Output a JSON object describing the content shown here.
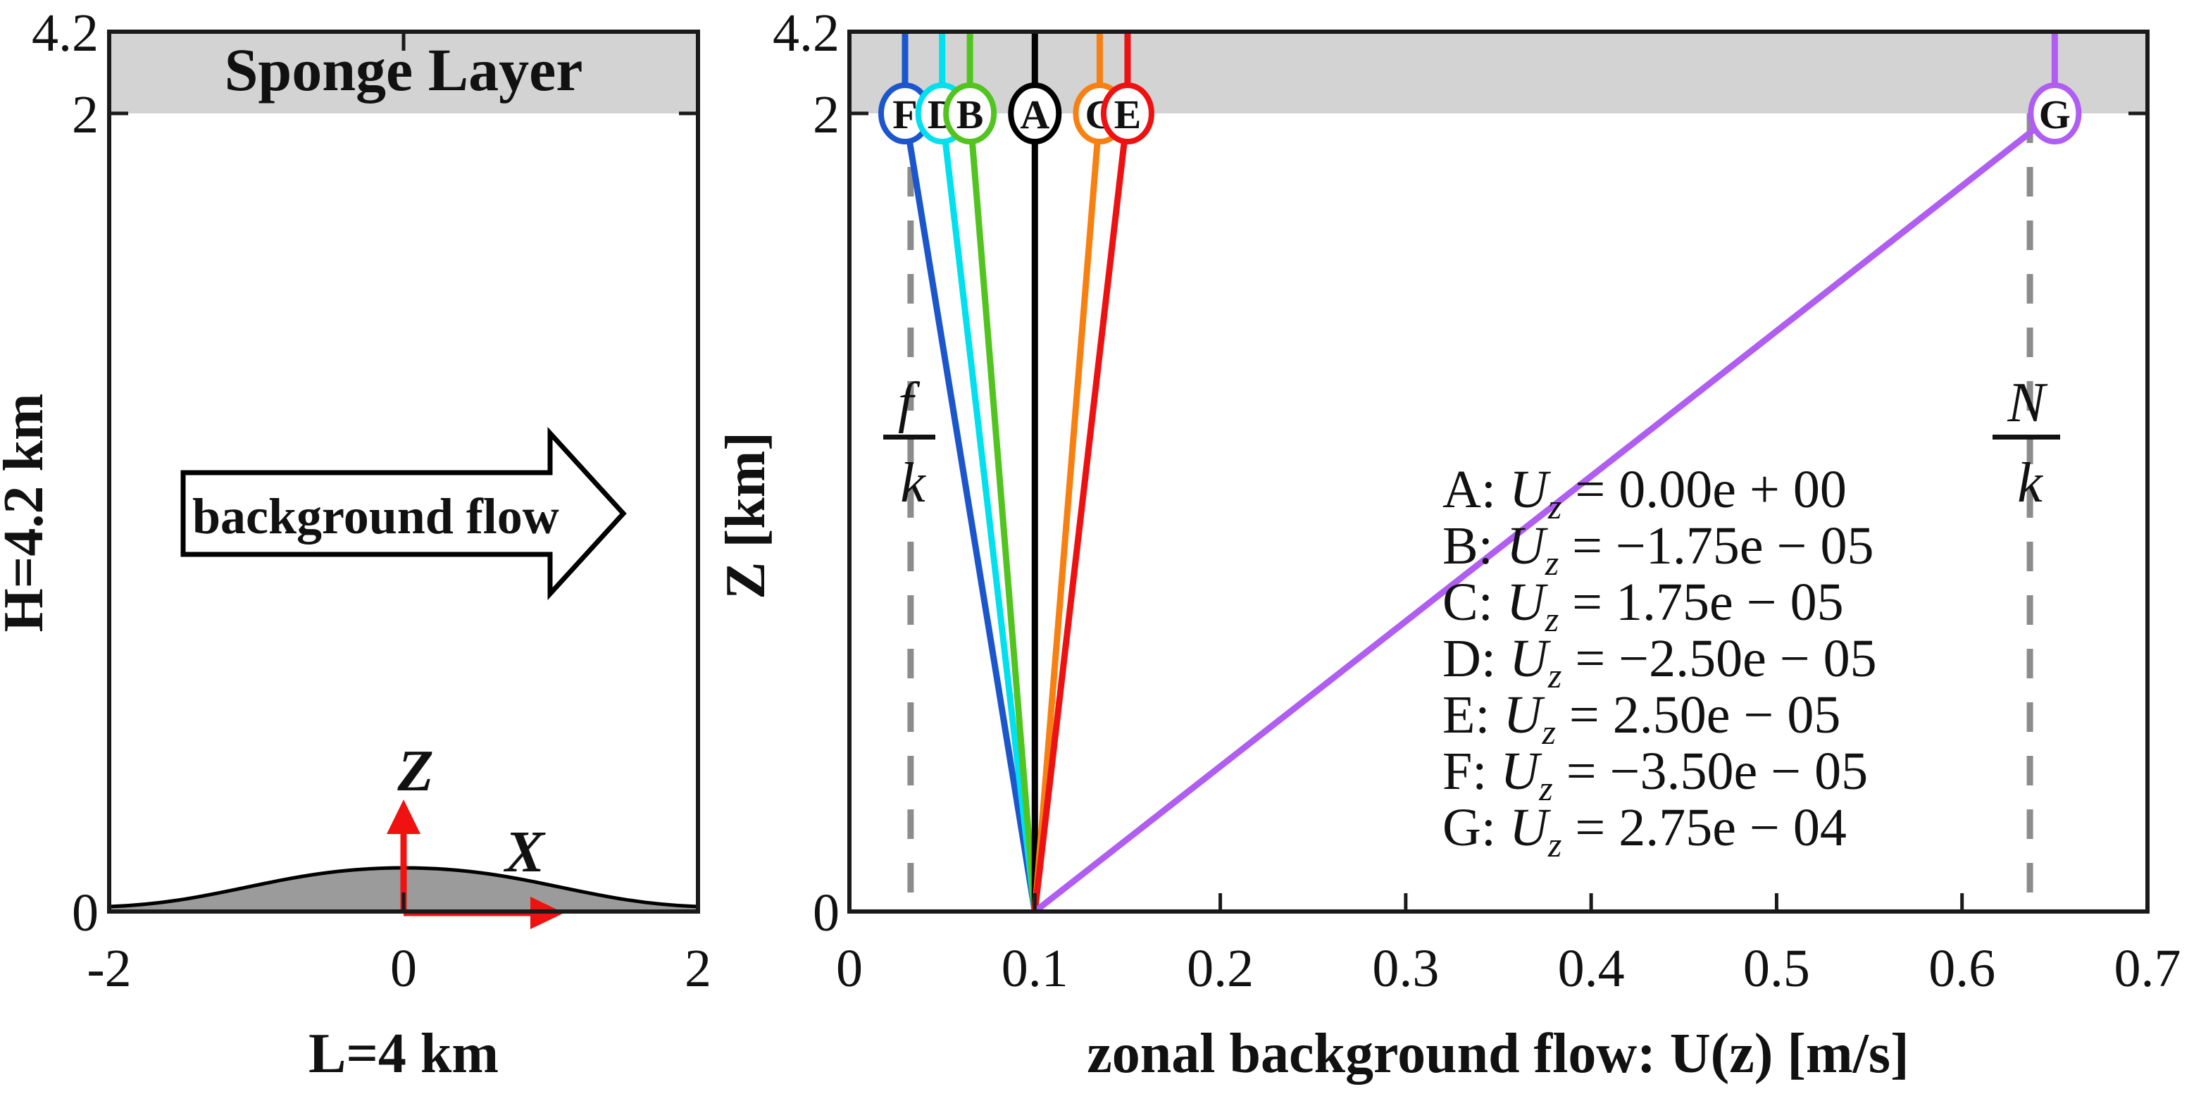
{
  "figure": {
    "description": "Model setup schematic and zonal background flow profiles",
    "background_color": "#ffffff",
    "spine_color": "#1a1a1a",
    "sponge_color": "#d3d3d3",
    "hill_color": "#9b9b9b",
    "dashed_color": "#8c8c8c",
    "accent_red": "#f01111"
  },
  "left_panel": {
    "sponge_label": "Sponge Layer",
    "arrow_label": "background flow",
    "y_axis_label": "H=4.2 km",
    "x_axis_label": "L=4 km",
    "y_ticks": [
      "4.2",
      "2",
      "0"
    ],
    "x_ticks": [
      "-2",
      "0",
      "2"
    ],
    "x_tick_values": [
      -2,
      0,
      2
    ],
    "z_arrow_label": "Z",
    "x_arrow_label": "X"
  },
  "right_panel": {
    "y_axis_label": "Z [km]",
    "x_axis_label": "zonal background flow: U(z) [m/s]",
    "y_ticks": [
      "4.2",
      "2",
      "0"
    ],
    "x_ticks": [
      "0",
      "0.1",
      "0.2",
      "0.3",
      "0.4",
      "0.5",
      "0.6",
      "0.7"
    ],
    "x_tick_values": [
      0,
      0.1,
      0.2,
      0.3,
      0.4,
      0.5,
      0.6,
      0.7
    ],
    "fraction_left": {
      "numerator": "f",
      "denominator": "k"
    },
    "fraction_right": {
      "numerator": "N",
      "denominator": "k"
    }
  },
  "chart_data": {
    "type": "line",
    "title": "",
    "xlabel": "zonal background flow: U(z) [m/s]",
    "ylabel": "Z [km]",
    "xlim": [
      0,
      0.7
    ],
    "ylim": [
      0,
      4.2
    ],
    "grid": false,
    "legend_position": "lower right",
    "surface_flow_U0": 0.1,
    "sponge_layer_z_range": [
      2,
      4.2
    ],
    "dashed_vertical_lines": [
      {
        "name": "f/k",
        "value": 0.033
      },
      {
        "name": "N/k",
        "value": 0.6366
      }
    ],
    "series": [
      {
        "label": "A",
        "shear_Uz": 0.0,
        "value_text": "0.00e + 00",
        "color": "#000000",
        "U_at_0km": 0.1,
        "U_at_2km": 0.1
      },
      {
        "label": "B",
        "shear_Uz": -1.75e-05,
        "value_text": "−1.75e − 05",
        "color": "#52c41f",
        "U_at_0km": 0.1,
        "U_at_2km": 0.065
      },
      {
        "label": "C",
        "shear_Uz": 1.75e-05,
        "value_text": "1.75e − 05",
        "color": "#f88010",
        "U_at_0km": 0.1,
        "U_at_2km": 0.135
      },
      {
        "label": "D",
        "shear_Uz": -2.5e-05,
        "value_text": "−2.50e − 05",
        "color": "#00e0ee",
        "U_at_0km": 0.1,
        "U_at_2km": 0.05
      },
      {
        "label": "E",
        "shear_Uz": 2.5e-05,
        "value_text": "2.50e − 05",
        "color": "#ee1111",
        "U_at_0km": 0.1,
        "U_at_2km": 0.15
      },
      {
        "label": "F",
        "shear_Uz": -3.5e-05,
        "value_text": "−3.50e − 05",
        "color": "#1c56cc",
        "U_at_0km": 0.1,
        "U_at_2km": 0.03
      },
      {
        "label": "G",
        "shear_Uz": 0.000275,
        "value_text": "2.75e − 04",
        "color": "#b05ef2",
        "U_at_0km": 0.1,
        "U_at_2km": 0.65
      }
    ],
    "legend_prefix_var": "U",
    "legend_prefix_sub": "z"
  }
}
